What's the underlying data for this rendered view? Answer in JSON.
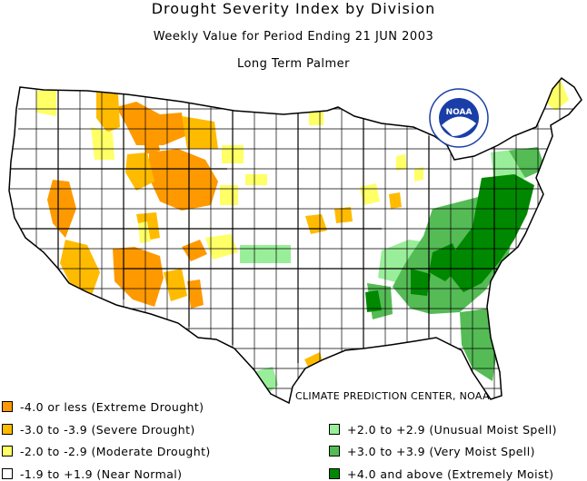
{
  "header": {
    "title": "Drought Severity Index by Division",
    "subtitle": "Weekly Value for Period Ending 21 JUN 2003",
    "index_name": "Long Term Palmer"
  },
  "logo": {
    "text": "NOAA"
  },
  "credit": "CLIMATE PREDICTION CENTER, NOAA",
  "colors": {
    "extreme_drought": "#ff9900",
    "severe_drought": "#ffbb00",
    "moderate_drought": "#ffff66",
    "near_normal": "#ffffff",
    "unusual_moist": "#99ee99",
    "very_moist": "#55bb55",
    "extremely_moist": "#008800"
  },
  "legend": {
    "left": [
      {
        "label": "-4.0 or less (Extreme Drought)",
        "color": "#ff9900"
      },
      {
        "label": "-3.0 to -3.9 (Severe Drought)",
        "color": "#ffbb00"
      },
      {
        "label": "-2.0 to -2.9 (Moderate Drought)",
        "color": "#ffff66"
      },
      {
        "label": "-1.9 to +1.9 (Near Normal)",
        "color": "#ffffff"
      }
    ],
    "right": [
      {
        "label": "+2.0 to +2.9 (Unusual Moist Spell)",
        "color": "#99ee99"
      },
      {
        "label": "+3.0 to +3.9 (Very Moist Spell)",
        "color": "#55bb55"
      },
      {
        "label": "+4.0 and above (Extremely Moist)",
        "color": "#008800"
      }
    ]
  }
}
